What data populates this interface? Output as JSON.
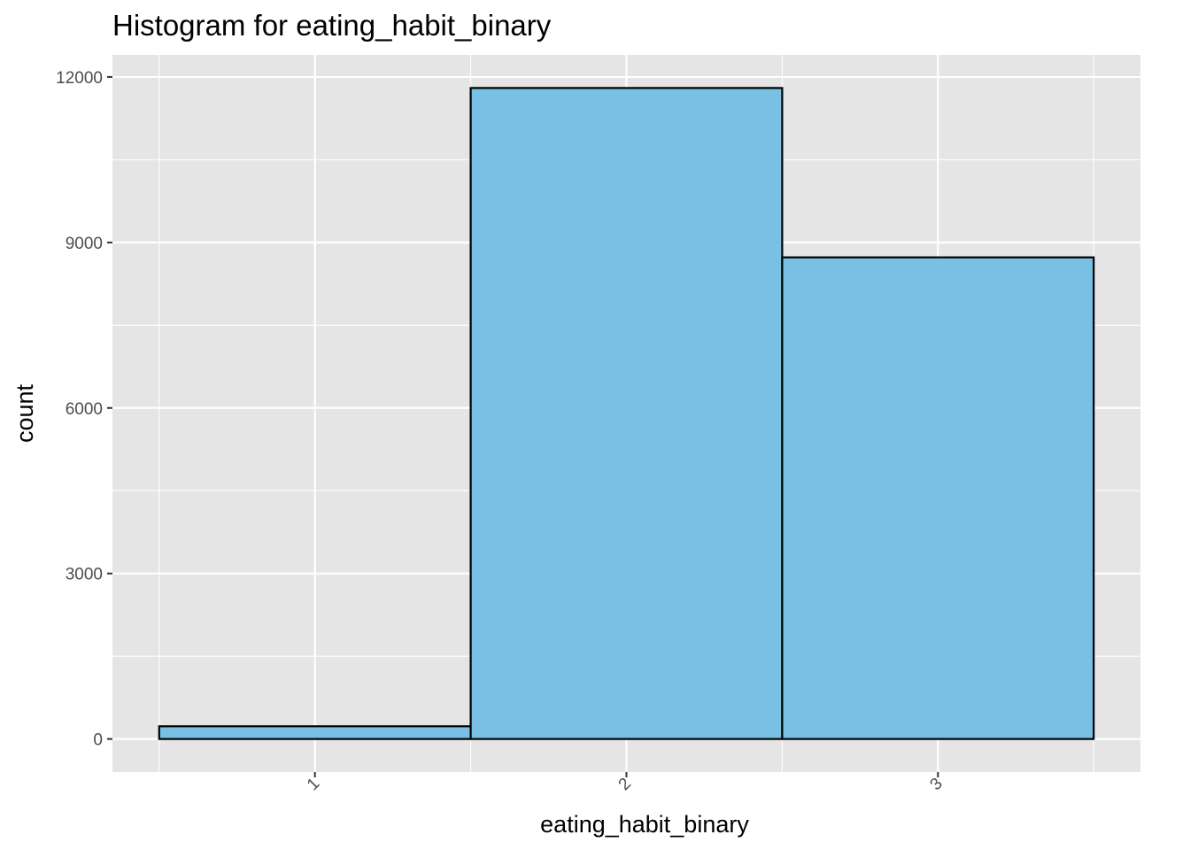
{
  "chart_data": {
    "type": "bar",
    "title": "Histogram for eating_habit_binary",
    "xlabel": "eating_habit_binary",
    "ylabel": "count",
    "categories": [
      "1",
      "2",
      "3"
    ],
    "values": [
      230,
      11800,
      8730
    ],
    "ylim": [
      -600,
      12400
    ],
    "yticks": [
      0,
      3000,
      6000,
      9000,
      12000
    ],
    "ytick_labels": [
      "0",
      "3000",
      "6000",
      "9000",
      "12000"
    ],
    "x_tick_rotation": 45,
    "grid": true,
    "legend": "none",
    "colors": {
      "panel": "#e5e5e5",
      "grid": "#ffffff",
      "bar_fill": "#79c1e4",
      "bar_stroke": "#000000"
    }
  }
}
